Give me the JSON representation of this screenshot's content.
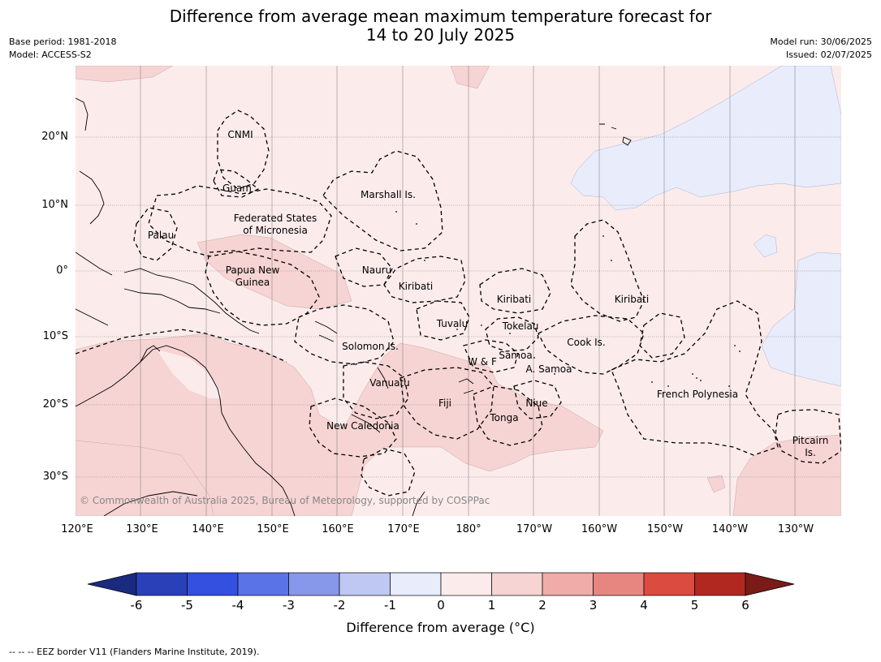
{
  "title_line1": "Difference from average mean maximum temperature forecast for",
  "title_line2": "14 to 20 July 2025",
  "base_period": "Base period: 1981-2018",
  "model": "Model: ACCESS-S2",
  "model_run": "Model run: 30/06/2025",
  "issued": "Issued: 02/07/2025",
  "lat_labels": [
    "20°N",
    "10°N",
    "0°",
    "10°S",
    "20°S",
    "30°S"
  ],
  "lon_labels": [
    "120°E",
    "130°E",
    "140°E",
    "150°E",
    "160°E",
    "170°E",
    "180°",
    "170°W",
    "160°W",
    "150°W",
    "140°W",
    "130°W"
  ],
  "regions": {
    "cnmi": "CNMI",
    "guam": "Guam",
    "marshall": "Marshall Is.",
    "fsm1": "Federated States",
    "fsm2": "of Micronesia",
    "palau": "Palau",
    "png1": "Papua New",
    "png2": "Guinea",
    "nauru": "Nauru",
    "kiribati_w": "Kiribati",
    "kiribati_c": "Kiribati",
    "kiribati_e": "Kiribati",
    "tuvalu": "Tuvalu",
    "tokelau": "Tokelau",
    "cook": "Cook Is.",
    "solomon": "Solomon Is.",
    "samoa": "Samoa",
    "wf": "W & F",
    "asamoa": "A. Samoa",
    "vanuatu": "Vanuatu",
    "fiji": "Fiji",
    "niue": "Niue",
    "tonga": "Tonga",
    "french_poly": "French Polynesia",
    "new_caledonia": "New Caledonia",
    "pitcairn1": "Pitcairn",
    "pitcairn2": "Is."
  },
  "copyright": "© Commonwealth of Australia 2025, Bureau of Meteorology, supported by COSPPac",
  "colorbar": {
    "ticks": [
      "-6",
      "-5",
      "-4",
      "-3",
      "-2",
      "-1",
      "0",
      "1",
      "2",
      "3",
      "4",
      "5",
      "6"
    ],
    "colors": [
      "#1a2a7e",
      "#2a40b8",
      "#3350e0",
      "#5a73e6",
      "#8797ea",
      "#bfc8f2",
      "#e8ecfb",
      "#fbeceb",
      "#f6d4d3",
      "#efaca8",
      "#e78681",
      "#db4b40",
      "#b0281f",
      "#7a1b17"
    ],
    "label": "Difference from average (°C)"
  },
  "footnote": "--  --  -- EEZ border V11 (Flanders Marine Institute, 2019).",
  "map_colors": {
    "base": "#fbeceb",
    "warm": "#f6d4d3",
    "cool": "#e8ecfb"
  }
}
